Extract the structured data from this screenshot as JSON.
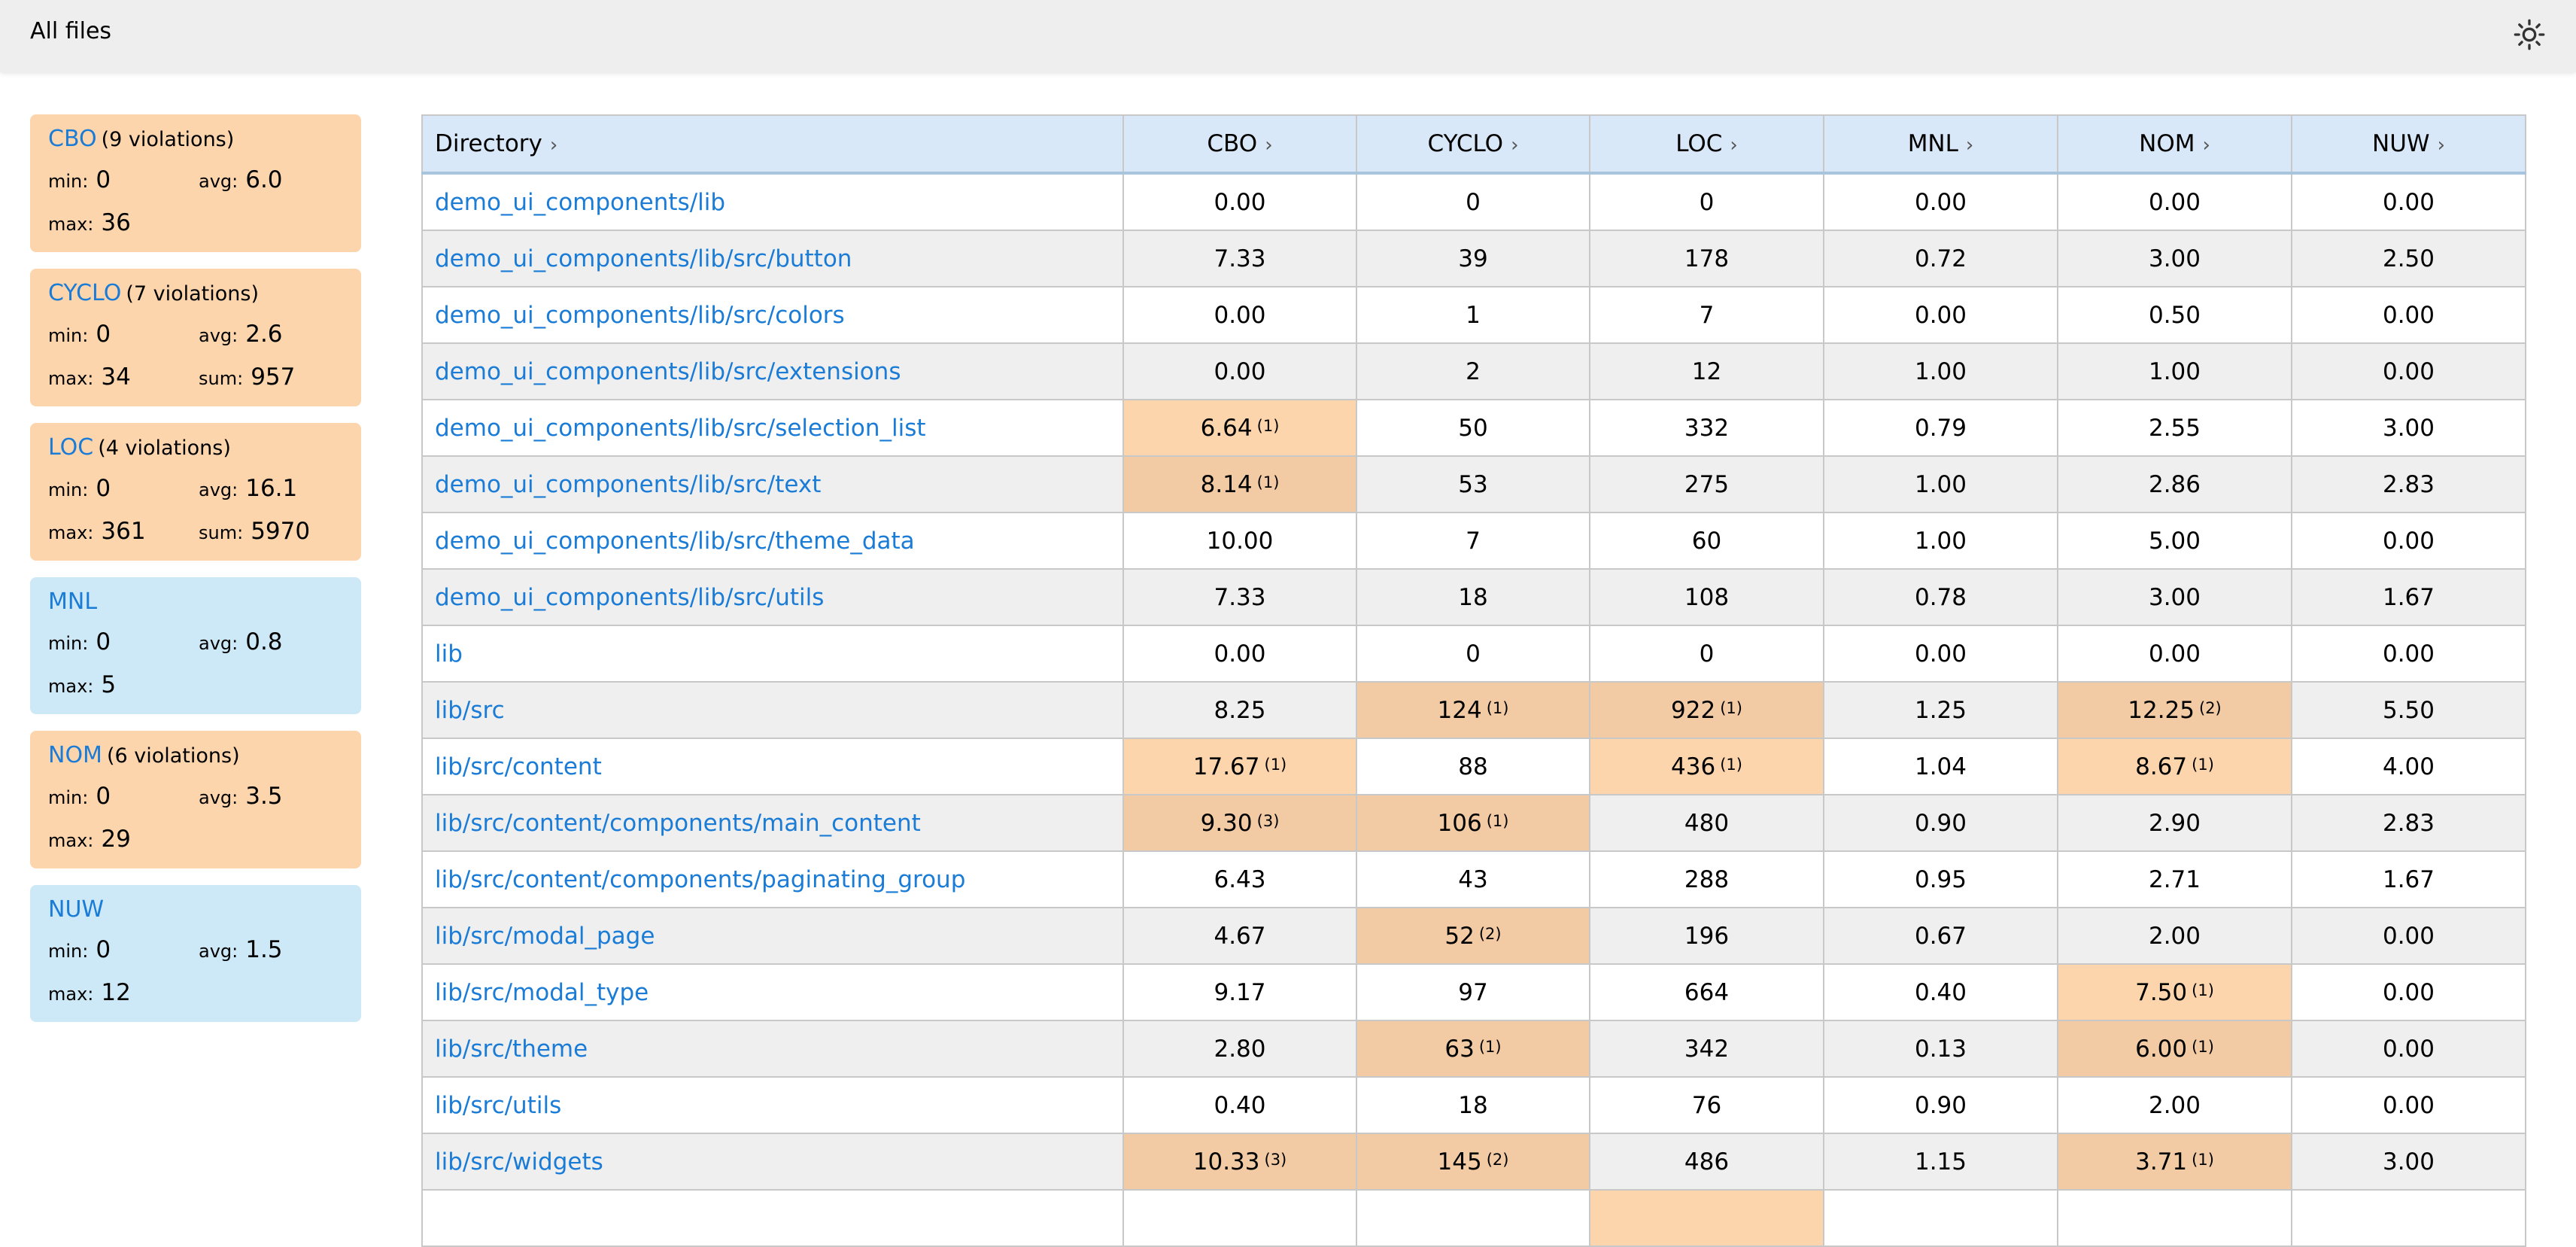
{
  "header": {
    "title": "All files",
    "theme_icon": "sun-icon"
  },
  "colors": {
    "violation": "#fdd5ad",
    "ok": "#cde9f7",
    "link": "#1a7cd6",
    "header_row": "#d9e8f8"
  },
  "sidebar": {
    "cards": [
      {
        "metric": "CBO",
        "violations": "(9 violations)",
        "status": "violation",
        "stats": [
          {
            "label": "min:",
            "value": "0"
          },
          {
            "label": "avg:",
            "value": "6.0"
          },
          {
            "label": "max:",
            "value": "36"
          }
        ]
      },
      {
        "metric": "CYCLO",
        "violations": "(7 violations)",
        "status": "violation",
        "stats": [
          {
            "label": "min:",
            "value": "0"
          },
          {
            "label": "avg:",
            "value": "2.6"
          },
          {
            "label": "max:",
            "value": "34"
          },
          {
            "label": "sum:",
            "value": "957"
          }
        ]
      },
      {
        "metric": "LOC",
        "violations": "(4 violations)",
        "status": "violation",
        "stats": [
          {
            "label": "min:",
            "value": "0"
          },
          {
            "label": "avg:",
            "value": "16.1"
          },
          {
            "label": "max:",
            "value": "361"
          },
          {
            "label": "sum:",
            "value": "5970"
          }
        ]
      },
      {
        "metric": "MNL",
        "violations": "",
        "status": "ok",
        "stats": [
          {
            "label": "min:",
            "value": "0"
          },
          {
            "label": "avg:",
            "value": "0.8"
          },
          {
            "label": "max:",
            "value": "5"
          }
        ]
      },
      {
        "metric": "NOM",
        "violations": "(6 violations)",
        "status": "violation",
        "stats": [
          {
            "label": "min:",
            "value": "0"
          },
          {
            "label": "avg:",
            "value": "3.5"
          },
          {
            "label": "max:",
            "value": "29"
          }
        ]
      },
      {
        "metric": "NUW",
        "violations": "",
        "status": "ok",
        "stats": [
          {
            "label": "min:",
            "value": "0"
          },
          {
            "label": "avg:",
            "value": "1.5"
          },
          {
            "label": "max:",
            "value": "12"
          }
        ]
      }
    ]
  },
  "table": {
    "columns": [
      "Directory",
      "CBO",
      "CYCLO",
      "LOC",
      "MNL",
      "NOM",
      "NUW"
    ],
    "sort_icon": "chevron-right-icon",
    "rows": [
      {
        "dir": "demo_ui_components/lib",
        "cells": [
          {
            "v": "0.00"
          },
          {
            "v": "0"
          },
          {
            "v": "0"
          },
          {
            "v": "0.00"
          },
          {
            "v": "0.00"
          },
          {
            "v": "0.00"
          }
        ]
      },
      {
        "dir": "demo_ui_components/lib/src/button",
        "cells": [
          {
            "v": "7.33"
          },
          {
            "v": "39"
          },
          {
            "v": "178"
          },
          {
            "v": "0.72"
          },
          {
            "v": "3.00"
          },
          {
            "v": "2.50"
          }
        ]
      },
      {
        "dir": "demo_ui_components/lib/src/colors",
        "cells": [
          {
            "v": "0.00"
          },
          {
            "v": "1"
          },
          {
            "v": "7"
          },
          {
            "v": "0.00"
          },
          {
            "v": "0.50"
          },
          {
            "v": "0.00"
          }
        ]
      },
      {
        "dir": "demo_ui_components/lib/src/extensions",
        "cells": [
          {
            "v": "0.00"
          },
          {
            "v": "2"
          },
          {
            "v": "12"
          },
          {
            "v": "1.00"
          },
          {
            "v": "1.00"
          },
          {
            "v": "0.00"
          }
        ]
      },
      {
        "dir": "demo_ui_components/lib/src/selection_list",
        "cells": [
          {
            "v": "6.64",
            "n": "(1)"
          },
          {
            "v": "50"
          },
          {
            "v": "332"
          },
          {
            "v": "0.79"
          },
          {
            "v": "2.55"
          },
          {
            "v": "3.00"
          }
        ]
      },
      {
        "dir": "demo_ui_components/lib/src/text",
        "cells": [
          {
            "v": "8.14",
            "n": "(1)"
          },
          {
            "v": "53"
          },
          {
            "v": "275"
          },
          {
            "v": "1.00"
          },
          {
            "v": "2.86"
          },
          {
            "v": "2.83"
          }
        ]
      },
      {
        "dir": "demo_ui_components/lib/src/theme_data",
        "cells": [
          {
            "v": "10.00"
          },
          {
            "v": "7"
          },
          {
            "v": "60"
          },
          {
            "v": "1.00"
          },
          {
            "v": "5.00"
          },
          {
            "v": "0.00"
          }
        ]
      },
      {
        "dir": "demo_ui_components/lib/src/utils",
        "cells": [
          {
            "v": "7.33"
          },
          {
            "v": "18"
          },
          {
            "v": "108"
          },
          {
            "v": "0.78"
          },
          {
            "v": "3.00"
          },
          {
            "v": "1.67"
          }
        ]
      },
      {
        "dir": "lib",
        "cells": [
          {
            "v": "0.00"
          },
          {
            "v": "0"
          },
          {
            "v": "0"
          },
          {
            "v": "0.00"
          },
          {
            "v": "0.00"
          },
          {
            "v": "0.00"
          }
        ]
      },
      {
        "dir": "lib/src",
        "cells": [
          {
            "v": "8.25"
          },
          {
            "v": "124",
            "n": "(1)"
          },
          {
            "v": "922",
            "n": "(1)"
          },
          {
            "v": "1.25"
          },
          {
            "v": "12.25",
            "n": "(2)"
          },
          {
            "v": "5.50"
          }
        ]
      },
      {
        "dir": "lib/src/content",
        "cells": [
          {
            "v": "17.67",
            "n": "(1)"
          },
          {
            "v": "88"
          },
          {
            "v": "436",
            "n": "(1)"
          },
          {
            "v": "1.04"
          },
          {
            "v": "8.67",
            "n": "(1)"
          },
          {
            "v": "4.00"
          }
        ]
      },
      {
        "dir": "lib/src/content/components/main_content",
        "cells": [
          {
            "v": "9.30",
            "n": "(3)"
          },
          {
            "v": "106",
            "n": "(1)"
          },
          {
            "v": "480"
          },
          {
            "v": "0.90"
          },
          {
            "v": "2.90"
          },
          {
            "v": "2.83"
          }
        ]
      },
      {
        "dir": "lib/src/content/components/paginating_group",
        "cells": [
          {
            "v": "6.43"
          },
          {
            "v": "43"
          },
          {
            "v": "288"
          },
          {
            "v": "0.95"
          },
          {
            "v": "2.71"
          },
          {
            "v": "1.67"
          }
        ]
      },
      {
        "dir": "lib/src/modal_page",
        "cells": [
          {
            "v": "4.67"
          },
          {
            "v": "52",
            "n": "(2)"
          },
          {
            "v": "196"
          },
          {
            "v": "0.67"
          },
          {
            "v": "2.00"
          },
          {
            "v": "0.00"
          }
        ]
      },
      {
        "dir": "lib/src/modal_type",
        "cells": [
          {
            "v": "9.17"
          },
          {
            "v": "97"
          },
          {
            "v": "664"
          },
          {
            "v": "0.40"
          },
          {
            "v": "7.50",
            "n": "(1)"
          },
          {
            "v": "0.00"
          }
        ]
      },
      {
        "dir": "lib/src/theme",
        "cells": [
          {
            "v": "2.80"
          },
          {
            "v": "63",
            "n": "(1)"
          },
          {
            "v": "342"
          },
          {
            "v": "0.13"
          },
          {
            "v": "6.00",
            "n": "(1)"
          },
          {
            "v": "0.00"
          }
        ]
      },
      {
        "dir": "lib/src/utils",
        "cells": [
          {
            "v": "0.40"
          },
          {
            "v": "18"
          },
          {
            "v": "76"
          },
          {
            "v": "0.90"
          },
          {
            "v": "2.00"
          },
          {
            "v": "0.00"
          }
        ]
      },
      {
        "dir": "lib/src/widgets",
        "cells": [
          {
            "v": "10.33",
            "n": "(3)"
          },
          {
            "v": "145",
            "n": "(2)"
          },
          {
            "v": "486"
          },
          {
            "v": "1.15"
          },
          {
            "v": "3.71",
            "n": "(1)"
          },
          {
            "v": "3.00"
          }
        ]
      },
      {
        "dir": "",
        "cells": [
          {
            "v": ""
          },
          {
            "v": ""
          },
          {
            "v": "",
            "n": "",
            "flag": true
          },
          {
            "v": ""
          },
          {
            "v": ""
          },
          {
            "v": ""
          }
        ]
      }
    ]
  }
}
